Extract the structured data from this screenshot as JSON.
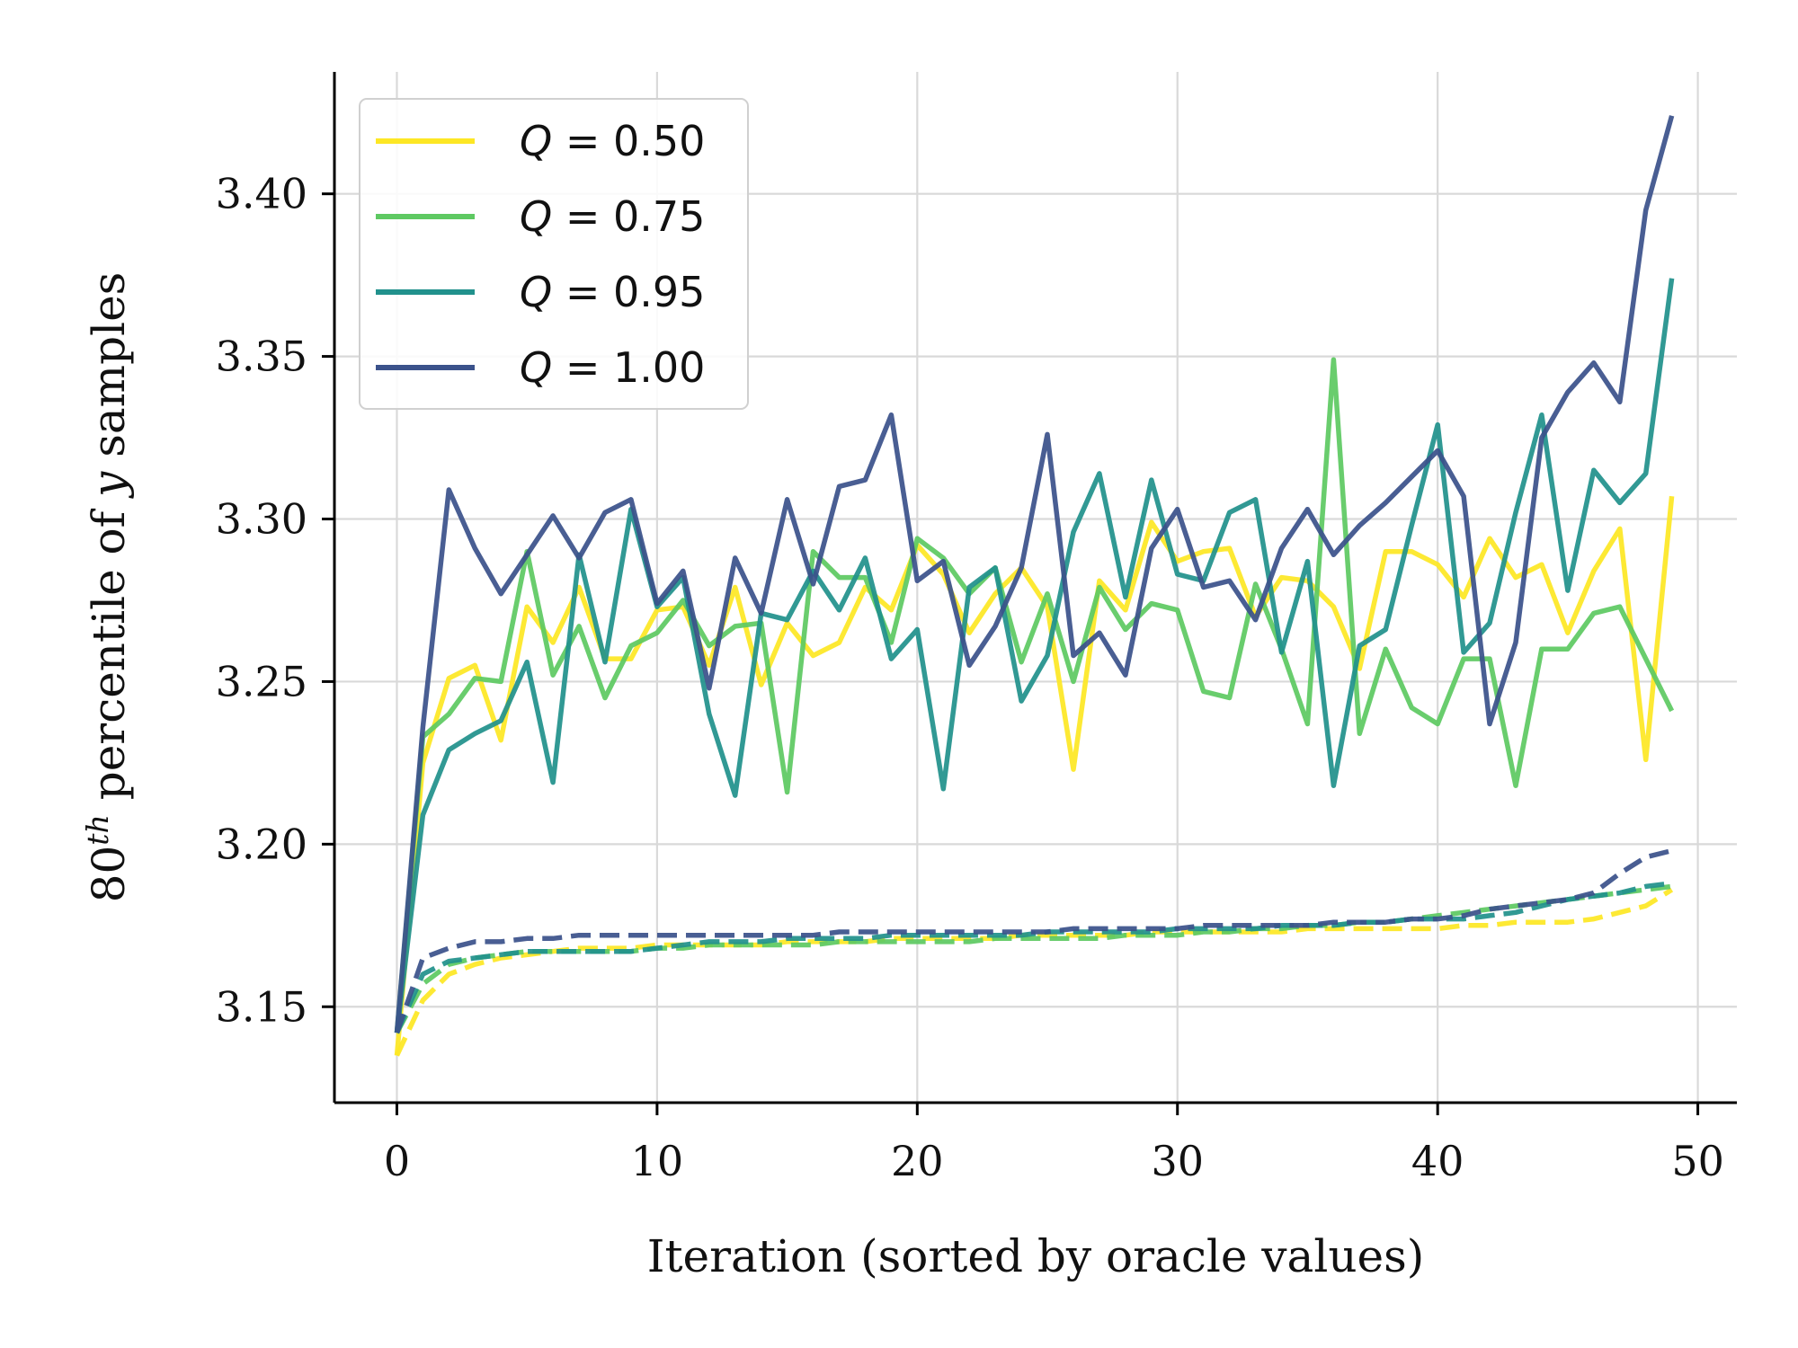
{
  "chart_data": {
    "type": "line",
    "title": "",
    "xlabel": "Iteration (sorted by oracle values)",
    "ylabel_parts": {
      "base": "80",
      "sup": "th",
      "middle": " percentile of ",
      "var": "y",
      "tail": " samples"
    },
    "xlim": [
      -2.4,
      51.5
    ],
    "ylim": [
      3.1205,
      3.4375
    ],
    "xticks": [
      0,
      10,
      20,
      30,
      40,
      50
    ],
    "yticks": [
      3.15,
      3.2,
      3.25,
      3.3,
      3.35,
      3.4
    ],
    "ytick_labels": [
      "3.15",
      "3.20",
      "3.25",
      "3.30",
      "3.35",
      "3.40"
    ],
    "grid": true,
    "legend_position": "top-left",
    "series": [
      {
        "name": "Q = 0.50",
        "legend_var": "Q",
        "legend_value": "0.50",
        "color": "#fde725",
        "style": "solid",
        "x": [
          0,
          1,
          2,
          3,
          4,
          5,
          6,
          7,
          8,
          9,
          10,
          11,
          12,
          13,
          14,
          15,
          16,
          17,
          18,
          19,
          20,
          21,
          22,
          23,
          24,
          25,
          26,
          27,
          28,
          29,
          30,
          31,
          32,
          33,
          34,
          35,
          36,
          37,
          38,
          39,
          40,
          41,
          42,
          43,
          44,
          45,
          46,
          47,
          48,
          49
        ],
        "values": [
          3.135,
          3.225,
          3.251,
          3.255,
          3.232,
          3.273,
          3.262,
          3.279,
          3.257,
          3.257,
          3.272,
          3.273,
          3.255,
          3.279,
          3.249,
          3.268,
          3.258,
          3.262,
          3.279,
          3.272,
          3.292,
          3.283,
          3.265,
          3.277,
          3.285,
          3.273,
          3.223,
          3.281,
          3.272,
          3.299,
          3.287,
          3.29,
          3.291,
          3.27,
          3.282,
          3.281,
          3.273,
          3.254,
          3.29,
          3.29,
          3.286,
          3.276,
          3.294,
          3.282,
          3.286,
          3.265,
          3.284,
          3.297,
          3.226,
          3.307
        ]
      },
      {
        "name": "Q = 0.75",
        "legend_var": "Q",
        "legend_value": "0.75",
        "color": "#5ec962",
        "style": "solid",
        "x": [
          0,
          1,
          2,
          3,
          4,
          5,
          6,
          7,
          8,
          9,
          10,
          11,
          12,
          13,
          14,
          15,
          16,
          17,
          18,
          19,
          20,
          21,
          22,
          23,
          24,
          25,
          26,
          27,
          28,
          29,
          30,
          31,
          32,
          33,
          34,
          35,
          36,
          37,
          38,
          39,
          40,
          41,
          42,
          43,
          44,
          45,
          46,
          47,
          48,
          49
        ],
        "values": [
          3.142,
          3.233,
          3.24,
          3.251,
          3.25,
          3.29,
          3.252,
          3.267,
          3.245,
          3.261,
          3.265,
          3.275,
          3.261,
          3.267,
          3.268,
          3.216,
          3.29,
          3.282,
          3.282,
          3.262,
          3.294,
          3.288,
          3.277,
          3.285,
          3.256,
          3.277,
          3.25,
          3.279,
          3.266,
          3.274,
          3.272,
          3.247,
          3.245,
          3.28,
          3.26,
          3.237,
          3.349,
          3.234,
          3.26,
          3.242,
          3.237,
          3.257,
          3.257,
          3.218,
          3.26,
          3.26,
          3.271,
          3.273,
          3.257,
          3.241
        ]
      },
      {
        "name": "Q = 0.95",
        "legend_var": "Q",
        "legend_value": "0.95",
        "color": "#21918c",
        "style": "solid",
        "x": [
          0,
          1,
          2,
          3,
          4,
          5,
          6,
          7,
          8,
          9,
          10,
          11,
          12,
          13,
          14,
          15,
          16,
          17,
          18,
          19,
          20,
          21,
          22,
          23,
          24,
          25,
          26,
          27,
          28,
          29,
          30,
          31,
          32,
          33,
          34,
          35,
          36,
          37,
          38,
          39,
          40,
          41,
          42,
          43,
          44,
          45,
          46,
          47,
          48,
          49
        ],
        "values": [
          3.142,
          3.209,
          3.229,
          3.234,
          3.238,
          3.256,
          3.219,
          3.289,
          3.256,
          3.303,
          3.273,
          3.282,
          3.24,
          3.215,
          3.271,
          3.269,
          3.284,
          3.272,
          3.288,
          3.257,
          3.266,
          3.217,
          3.279,
          3.285,
          3.244,
          3.258,
          3.296,
          3.314,
          3.276,
          3.312,
          3.283,
          3.281,
          3.302,
          3.306,
          3.259,
          3.287,
          3.218,
          3.261,
          3.266,
          3.298,
          3.329,
          3.259,
          3.268,
          3.302,
          3.332,
          3.278,
          3.315,
          3.305,
          3.314,
          3.374
        ]
      },
      {
        "name": "Q = 1.00",
        "legend_var": "Q",
        "legend_value": "1.00",
        "color": "#3b528b",
        "style": "solid",
        "x": [
          0,
          1,
          2,
          3,
          4,
          5,
          6,
          7,
          8,
          9,
          10,
          11,
          12,
          13,
          14,
          15,
          16,
          17,
          18,
          19,
          20,
          21,
          22,
          23,
          24,
          25,
          26,
          27,
          28,
          29,
          30,
          31,
          32,
          33,
          34,
          35,
          36,
          37,
          38,
          39,
          40,
          41,
          42,
          43,
          44,
          45,
          46,
          47,
          48,
          49
        ],
        "values": [
          3.142,
          3.236,
          3.309,
          3.291,
          3.277,
          3.289,
          3.301,
          3.288,
          3.302,
          3.306,
          3.274,
          3.284,
          3.248,
          3.288,
          3.271,
          3.306,
          3.28,
          3.31,
          3.312,
          3.332,
          3.281,
          3.287,
          3.255,
          3.267,
          3.285,
          3.326,
          3.258,
          3.265,
          3.252,
          3.291,
          3.303,
          3.279,
          3.281,
          3.269,
          3.291,
          3.303,
          3.289,
          3.298,
          3.305,
          3.313,
          3.321,
          3.307,
          3.237,
          3.262,
          3.325,
          3.339,
          3.348,
          3.336,
          3.395,
          3.424
        ]
      },
      {
        "name": "Q = 0.50 (dashed)",
        "color": "#fde725",
        "style": "dashed",
        "x": [
          0,
          1,
          2,
          3,
          4,
          5,
          6,
          7,
          8,
          9,
          10,
          11,
          12,
          13,
          14,
          15,
          16,
          17,
          18,
          19,
          20,
          21,
          22,
          23,
          24,
          25,
          26,
          27,
          28,
          29,
          30,
          31,
          32,
          33,
          34,
          35,
          36,
          37,
          38,
          39,
          40,
          41,
          42,
          43,
          44,
          45,
          46,
          47,
          48,
          49
        ],
        "values": [
          3.135,
          3.152,
          3.16,
          3.163,
          3.165,
          3.166,
          3.167,
          3.168,
          3.168,
          3.168,
          3.169,
          3.169,
          3.169,
          3.169,
          3.169,
          3.17,
          3.17,
          3.17,
          3.17,
          3.171,
          3.171,
          3.171,
          3.171,
          3.171,
          3.172,
          3.172,
          3.172,
          3.172,
          3.172,
          3.173,
          3.173,
          3.173,
          3.173,
          3.173,
          3.173,
          3.174,
          3.174,
          3.174,
          3.174,
          3.174,
          3.174,
          3.175,
          3.175,
          3.176,
          3.176,
          3.176,
          3.177,
          3.179,
          3.181,
          3.186
        ]
      },
      {
        "name": "Q = 0.75 (dashed)",
        "color": "#5ec962",
        "style": "dashed",
        "x": [
          0,
          1,
          2,
          3,
          4,
          5,
          6,
          7,
          8,
          9,
          10,
          11,
          12,
          13,
          14,
          15,
          16,
          17,
          18,
          19,
          20,
          21,
          22,
          23,
          24,
          25,
          26,
          27,
          28,
          29,
          30,
          31,
          32,
          33,
          34,
          35,
          36,
          37,
          38,
          39,
          40,
          41,
          42,
          43,
          44,
          45,
          46,
          47,
          48,
          49
        ],
        "values": [
          3.142,
          3.157,
          3.163,
          3.165,
          3.166,
          3.167,
          3.167,
          3.167,
          3.167,
          3.167,
          3.168,
          3.168,
          3.169,
          3.169,
          3.169,
          3.169,
          3.169,
          3.17,
          3.17,
          3.17,
          3.17,
          3.17,
          3.17,
          3.171,
          3.171,
          3.171,
          3.171,
          3.171,
          3.172,
          3.172,
          3.172,
          3.173,
          3.173,
          3.174,
          3.174,
          3.175,
          3.175,
          3.176,
          3.176,
          3.177,
          3.178,
          3.179,
          3.18,
          3.181,
          3.182,
          3.183,
          3.184,
          3.185,
          3.186,
          3.187
        ]
      },
      {
        "name": "Q = 0.95 (dashed)",
        "color": "#21918c",
        "style": "dashed",
        "x": [
          0,
          1,
          2,
          3,
          4,
          5,
          6,
          7,
          8,
          9,
          10,
          11,
          12,
          13,
          14,
          15,
          16,
          17,
          18,
          19,
          20,
          21,
          22,
          23,
          24,
          25,
          26,
          27,
          28,
          29,
          30,
          31,
          32,
          33,
          34,
          35,
          36,
          37,
          38,
          39,
          40,
          41,
          42,
          43,
          44,
          45,
          46,
          47,
          48,
          49
        ],
        "values": [
          3.142,
          3.16,
          3.164,
          3.165,
          3.166,
          3.167,
          3.167,
          3.167,
          3.167,
          3.167,
          3.168,
          3.169,
          3.17,
          3.17,
          3.17,
          3.171,
          3.171,
          3.171,
          3.171,
          3.172,
          3.172,
          3.172,
          3.172,
          3.172,
          3.172,
          3.173,
          3.173,
          3.173,
          3.173,
          3.173,
          3.174,
          3.174,
          3.174,
          3.174,
          3.175,
          3.175,
          3.175,
          3.176,
          3.176,
          3.177,
          3.177,
          3.177,
          3.178,
          3.179,
          3.181,
          3.183,
          3.184,
          3.185,
          3.187,
          3.188
        ]
      },
      {
        "name": "Q = 1.00 (dashed)",
        "color": "#3b528b",
        "style": "dashed",
        "x": [
          0,
          1,
          2,
          3,
          4,
          5,
          6,
          7,
          8,
          9,
          10,
          11,
          12,
          13,
          14,
          15,
          16,
          17,
          18,
          19,
          20,
          21,
          22,
          23,
          24,
          25,
          26,
          27,
          28,
          29,
          30,
          31,
          32,
          33,
          34,
          35,
          36,
          37,
          38,
          39,
          40,
          41,
          42,
          43,
          44,
          45,
          46,
          47,
          48,
          49
        ],
        "values": [
          3.142,
          3.165,
          3.168,
          3.17,
          3.17,
          3.171,
          3.171,
          3.172,
          3.172,
          3.172,
          3.172,
          3.172,
          3.172,
          3.172,
          3.172,
          3.172,
          3.172,
          3.173,
          3.173,
          3.173,
          3.173,
          3.173,
          3.173,
          3.173,
          3.173,
          3.173,
          3.174,
          3.174,
          3.174,
          3.174,
          3.174,
          3.175,
          3.175,
          3.175,
          3.175,
          3.175,
          3.176,
          3.176,
          3.176,
          3.177,
          3.177,
          3.178,
          3.18,
          3.181,
          3.182,
          3.183,
          3.185,
          3.191,
          3.196,
          3.198
        ]
      }
    ]
  }
}
